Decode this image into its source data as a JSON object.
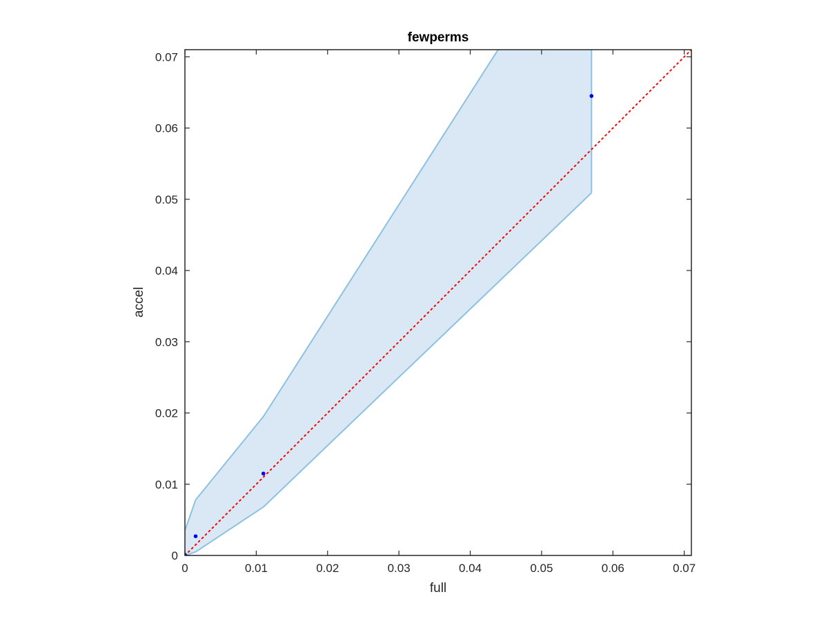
{
  "chart_data": {
    "type": "scatter",
    "title": "fewperms",
    "xlabel": "full",
    "ylabel": "accel",
    "xlim": [
      0,
      0.071
    ],
    "ylim": [
      0,
      0.071
    ],
    "x_ticks": [
      "0",
      "0.01",
      "0.02",
      "0.03",
      "0.04",
      "0.05",
      "0.06",
      "0.07"
    ],
    "y_ticks": [
      "0",
      "0.01",
      "0.02",
      "0.03",
      "0.04",
      "0.05",
      "0.06",
      "0.07"
    ],
    "grid": false,
    "points": {
      "x": [
        0.0,
        0.0015,
        0.011,
        0.057
      ],
      "y": [
        0.0001,
        0.0027,
        0.0115,
        0.0645
      ]
    },
    "band": {
      "x": [
        0.0,
        0.0015,
        0.011,
        0.057
      ],
      "upper": [
        0.0035,
        0.0078,
        0.0195,
        0.0915
      ],
      "lower": [
        0.0,
        0.0005,
        0.0068,
        0.0509
      ]
    },
    "reference_line": {
      "style": "dotted",
      "x": [
        0,
        0.071
      ],
      "y": [
        0,
        0.071
      ]
    },
    "colors": {
      "points": "#0000ff",
      "band_fill": "#d9e8f4",
      "band_edge": "#8cc1e0",
      "reference": "#ff0000",
      "axes": "#262626"
    }
  }
}
